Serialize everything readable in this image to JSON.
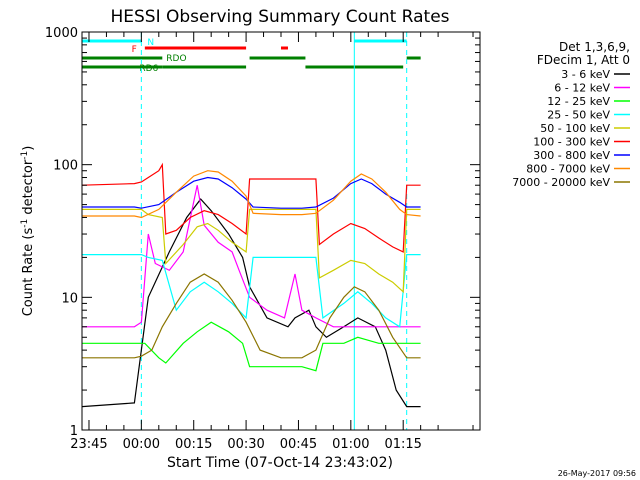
{
  "chart_data": {
    "type": "line",
    "title": "HESSI Observing Summary Count Rates",
    "xlabel": "Start Time (07-Oct-14 23:43:02)",
    "ylabel_main": "Count Rate (s",
    "ylabel_sup1": "-1",
    "ylabel_mid": " detector",
    "ylabel_sup2": "-1",
    "ylabel_end": ")",
    "yscale": "log",
    "ylim": [
      1,
      1000
    ],
    "xlim_minutes": [
      -17,
      97
    ],
    "x_unit": "minutes after 00:00 (08-Oct-14)",
    "x_ticks": [
      {
        "t": -15,
        "label": "23:45"
      },
      {
        "t": 0,
        "label": "00:00"
      },
      {
        "t": 15,
        "label": "00:15"
      },
      {
        "t": 30,
        "label": "00:30"
      },
      {
        "t": 45,
        "label": "00:45"
      },
      {
        "t": 60,
        "label": "01:00"
      },
      {
        "t": 75,
        "label": "01:15"
      }
    ],
    "y_ticks": [
      {
        "v": 1,
        "label": "1"
      },
      {
        "v": 10,
        "label": "10"
      },
      {
        "v": 100,
        "label": "100"
      },
      {
        "v": 1000,
        "label": "1000"
      }
    ],
    "legend_title1": "Det 1,3,6,9,",
    "legend_title2": "FDecim 1, Att 0",
    "legend_position": "right",
    "series": [
      {
        "name": "3 - 6 keV",
        "color": "#000000",
        "points": [
          [
            -17,
            1.5
          ],
          [
            -2,
            1.6
          ],
          [
            2,
            10
          ],
          [
            8,
            22
          ],
          [
            13,
            40
          ],
          [
            17,
            55
          ],
          [
            20,
            45
          ],
          [
            25,
            30
          ],
          [
            29,
            20
          ],
          [
            31,
            12
          ],
          [
            36,
            7
          ],
          [
            42,
            6
          ],
          [
            44,
            7
          ],
          [
            48,
            8
          ],
          [
            50,
            6
          ],
          [
            53,
            5
          ],
          [
            58,
            6
          ],
          [
            62,
            7
          ],
          [
            67,
            6
          ],
          [
            70,
            4
          ],
          [
            73,
            2
          ],
          [
            76,
            1.5
          ],
          [
            80,
            1.5
          ]
        ]
      },
      {
        "name": "6 - 12 keV",
        "color": "#ff00ff",
        "points": [
          [
            -17,
            6
          ],
          [
            -2,
            6
          ],
          [
            0,
            6.5
          ],
          [
            2,
            30
          ],
          [
            4,
            18
          ],
          [
            8,
            16
          ],
          [
            12,
            22
          ],
          [
            16,
            70
          ],
          [
            18,
            35
          ],
          [
            22,
            26
          ],
          [
            26,
            22
          ],
          [
            28,
            16
          ],
          [
            31,
            10
          ],
          [
            36,
            8
          ],
          [
            41,
            7
          ],
          [
            44,
            15
          ],
          [
            46,
            8
          ],
          [
            50,
            7
          ],
          [
            55,
            6
          ],
          [
            62,
            6
          ],
          [
            70,
            6
          ],
          [
            76,
            6
          ],
          [
            80,
            6
          ]
        ]
      },
      {
        "name": "12 - 25 keV",
        "color": "#00ff00",
        "points": [
          [
            -17,
            4.5
          ],
          [
            -2,
            4.5
          ],
          [
            1,
            4.5
          ],
          [
            5,
            3.5
          ],
          [
            7,
            3.2
          ],
          [
            12,
            4.5
          ],
          [
            16,
            5.5
          ],
          [
            20,
            6.5
          ],
          [
            25,
            5.5
          ],
          [
            29,
            4.5
          ],
          [
            31,
            3
          ],
          [
            40,
            3
          ],
          [
            46,
            3
          ],
          [
            50,
            2.8
          ],
          [
            52,
            4.5
          ],
          [
            58,
            4.5
          ],
          [
            62,
            5
          ],
          [
            68,
            4.5
          ],
          [
            72,
            4.5
          ],
          [
            76,
            4.5
          ],
          [
            80,
            4.5
          ]
        ]
      },
      {
        "name": "25 - 50 keV",
        "color": "#00ffff",
        "points": [
          [
            -17,
            21
          ],
          [
            -2,
            21
          ],
          [
            0,
            21
          ],
          [
            2,
            20
          ],
          [
            6,
            19
          ],
          [
            10,
            8
          ],
          [
            14,
            11
          ],
          [
            18,
            13
          ],
          [
            22,
            11
          ],
          [
            26,
            9
          ],
          [
            30,
            7
          ],
          [
            32,
            20
          ],
          [
            40,
            20
          ],
          [
            46,
            20
          ],
          [
            50,
            20
          ],
          [
            52,
            7
          ],
          [
            58,
            9
          ],
          [
            62,
            11
          ],
          [
            66,
            9
          ],
          [
            70,
            7
          ],
          [
            74,
            6
          ],
          [
            76,
            21
          ],
          [
            80,
            21
          ]
        ]
      },
      {
        "name": "50 - 100 keV",
        "color": "#cccc00",
        "points": [
          [
            -17,
            46
          ],
          [
            -2,
            46
          ],
          [
            0,
            46
          ],
          [
            2,
            42
          ],
          [
            6,
            40
          ],
          [
            7,
            18
          ],
          [
            12,
            25
          ],
          [
            16,
            34
          ],
          [
            19,
            36
          ],
          [
            22,
            32
          ],
          [
            26,
            26
          ],
          [
            30,
            22
          ],
          [
            31,
            46
          ],
          [
            40,
            46
          ],
          [
            50,
            46
          ],
          [
            51,
            14
          ],
          [
            55,
            16
          ],
          [
            60,
            19
          ],
          [
            64,
            18
          ],
          [
            68,
            15
          ],
          [
            72,
            13
          ],
          [
            75,
            11
          ],
          [
            76,
            46
          ],
          [
            80,
            46
          ]
        ]
      },
      {
        "name": "100 - 300 keV",
        "color": "#ff0000",
        "points": [
          [
            -17,
            70
          ],
          [
            -2,
            72
          ],
          [
            0,
            74
          ],
          [
            2,
            80
          ],
          [
            5,
            90
          ],
          [
            6,
            100
          ],
          [
            7,
            30
          ],
          [
            10,
            32
          ],
          [
            14,
            40
          ],
          [
            18,
            45
          ],
          [
            22,
            42
          ],
          [
            26,
            36
          ],
          [
            30,
            30
          ],
          [
            31,
            78
          ],
          [
            40,
            78
          ],
          [
            50,
            78
          ],
          [
            51,
            25
          ],
          [
            55,
            30
          ],
          [
            60,
            36
          ],
          [
            64,
            33
          ],
          [
            68,
            28
          ],
          [
            72,
            24
          ],
          [
            75,
            22
          ],
          [
            76,
            70
          ],
          [
            80,
            70
          ]
        ]
      },
      {
        "name": "300 - 800 keV",
        "color": "#0000ff",
        "points": [
          [
            -17,
            48
          ],
          [
            -2,
            48
          ],
          [
            0,
            47
          ],
          [
            5,
            50
          ],
          [
            10,
            62
          ],
          [
            15,
            75
          ],
          [
            19,
            80
          ],
          [
            22,
            78
          ],
          [
            26,
            67
          ],
          [
            30,
            55
          ],
          [
            32,
            48
          ],
          [
            40,
            47
          ],
          [
            46,
            47
          ],
          [
            50,
            48
          ],
          [
            55,
            56
          ],
          [
            60,
            72
          ],
          [
            63,
            78
          ],
          [
            66,
            72
          ],
          [
            70,
            60
          ],
          [
            74,
            52
          ],
          [
            76,
            48
          ],
          [
            80,
            48
          ]
        ]
      },
      {
        "name": "800 - 7000 keV",
        "color": "#ff8800",
        "points": [
          [
            -17,
            41
          ],
          [
            -2,
            41
          ],
          [
            0,
            40
          ],
          [
            5,
            46
          ],
          [
            10,
            62
          ],
          [
            15,
            82
          ],
          [
            19,
            90
          ],
          [
            22,
            88
          ],
          [
            26,
            75
          ],
          [
            30,
            58
          ],
          [
            32,
            43
          ],
          [
            40,
            42
          ],
          [
            46,
            42
          ],
          [
            50,
            43
          ],
          [
            55,
            54
          ],
          [
            60,
            75
          ],
          [
            63,
            85
          ],
          [
            66,
            78
          ],
          [
            70,
            62
          ],
          [
            74,
            46
          ],
          [
            76,
            42
          ],
          [
            80,
            41
          ]
        ]
      },
      {
        "name": "7000 - 20000 keV",
        "color": "#8b7500",
        "points": [
          [
            -17,
            3.5
          ],
          [
            -2,
            3.5
          ],
          [
            0,
            3.6
          ],
          [
            3,
            4
          ],
          [
            6,
            6
          ],
          [
            10,
            9
          ],
          [
            14,
            13
          ],
          [
            18,
            15
          ],
          [
            22,
            13
          ],
          [
            26,
            9.5
          ],
          [
            30,
            6.5
          ],
          [
            34,
            4
          ],
          [
            40,
            3.5
          ],
          [
            46,
            3.5
          ],
          [
            50,
            4
          ],
          [
            54,
            7
          ],
          [
            58,
            10
          ],
          [
            61,
            12
          ],
          [
            64,
            11
          ],
          [
            68,
            8
          ],
          [
            72,
            5
          ],
          [
            76,
            3.5
          ],
          [
            80,
            3.5
          ]
        ]
      }
    ],
    "flag_bars": [
      {
        "label": "N",
        "color": "#00ffff",
        "t0": -17,
        "t1": 0,
        "row": 0
      },
      {
        "label": "",
        "color": "#00ffff",
        "t0": 61,
        "t1": 76,
        "row": 0
      },
      {
        "label": "F",
        "color": "#ff0000",
        "t0": 1,
        "t1": 30,
        "row": 1
      },
      {
        "label": "",
        "color": "#ff0000",
        "t0": 40,
        "t1": 42,
        "row": 1
      },
      {
        "label": "RDO",
        "color": "#008000",
        "t0": -17,
        "t1": 6,
        "row": 2
      },
      {
        "label": "",
        "color": "#008000",
        "t0": 31,
        "t1": 47,
        "row": 2
      },
      {
        "label": "",
        "color": "#008000",
        "t0": 76,
        "t1": 80,
        "row": 2
      },
      {
        "label": "RD6",
        "color": "#008000",
        "t0": -17,
        "t1": 6,
        "row": 3
      },
      {
        "label": "",
        "color": "#008000",
        "t0": 6,
        "t1": 30,
        "row": 3
      },
      {
        "label": "",
        "color": "#008000",
        "t0": 47,
        "t1": 75,
        "row": 3
      }
    ],
    "vlines": [
      {
        "t": 0,
        "color": "#00ffff",
        "style": "dashed"
      },
      {
        "t": 61,
        "color": "#00ffff",
        "style": "solid"
      },
      {
        "t": 76,
        "color": "#00ffff",
        "style": "dashed"
      }
    ],
    "timestamp": "26-May-2017 09:56"
  }
}
